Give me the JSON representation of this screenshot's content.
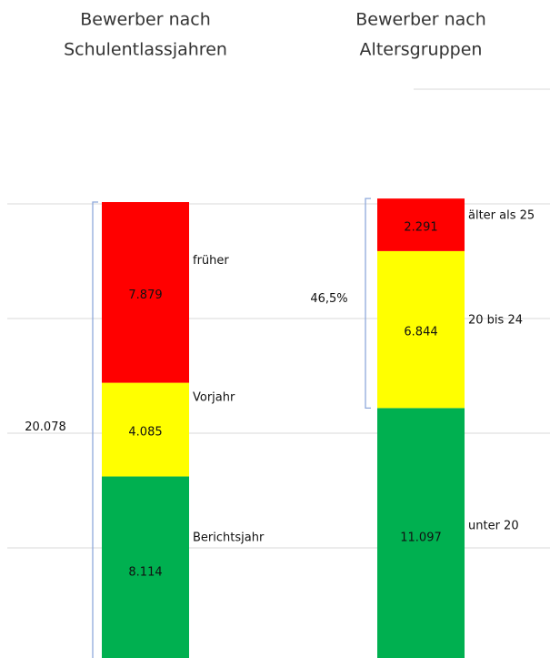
{
  "chart_data": [
    {
      "type": "stacked_bar",
      "title": [
        "Bewerber nach",
        "Schulentlassjahren"
      ],
      "series": [
        {
          "name": "Berichtsjahr",
          "color": "#00b050",
          "values": [
            8114
          ],
          "value_labels": [
            "8.114"
          ]
        },
        {
          "name": "Vorjahr",
          "color": "#ffff00",
          "values": [
            4085
          ],
          "value_labels": [
            "4.085"
          ]
        },
        {
          "name": "früher",
          "color": "#ff0000",
          "values": [
            7879
          ],
          "value_labels": [
            "7.879"
          ]
        }
      ],
      "annotation": {
        "label": "20.078",
        "value": 20078
      },
      "ylim": [
        0,
        25000
      ],
      "yticks": [
        5000,
        10000,
        15000,
        20000
      ],
      "grid": true
    },
    {
      "type": "stacked_bar",
      "title": [
        "Bewerber nach",
        "Altersgruppen"
      ],
      "series": [
        {
          "name": "unter 20",
          "color": "#00b050",
          "values": [
            11097
          ],
          "value_labels": [
            "11.097"
          ]
        },
        {
          "name": "20 bis 24",
          "color": "#ffff00",
          "values": [
            6844
          ],
          "value_labels": [
            "6.844"
          ]
        },
        {
          "name": "älter als 25",
          "color": "#ff0000",
          "values": [
            2291
          ],
          "value_labels": [
            "2.291"
          ]
        }
      ],
      "annotation": {
        "label": "46,5%",
        "value": 46.5
      },
      "ylim": [
        0,
        25000
      ],
      "yticks": [
        5000,
        10000,
        15000,
        20000
      ],
      "grid": true
    }
  ]
}
